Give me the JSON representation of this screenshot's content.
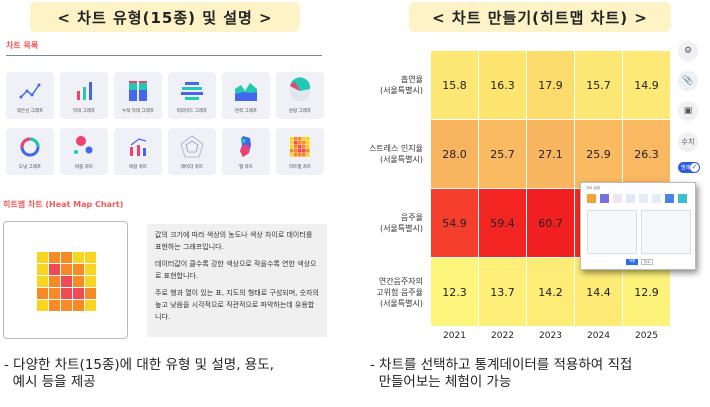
{
  "left_title": "< 차트 유형(15종) 및 설명 >",
  "right_title": "< 차트 만들기(히트맵 차트) >",
  "chart_list": {
    "heading": "차트 목록",
    "items": [
      {
        "label": "꺾은선 그래프",
        "icon": "line-chart"
      },
      {
        "label": "막대 그래프",
        "icon": "bar-chart"
      },
      {
        "label": "누적 막대 그래프",
        "icon": "stacked-bar-chart"
      },
      {
        "label": "피라미드 그래프",
        "icon": "pyramid-chart"
      },
      {
        "label": "면적 그래프",
        "icon": "area-chart"
      },
      {
        "label": "원형 그래프",
        "icon": "pie-chart"
      },
      {
        "label": "도넛 그래프",
        "icon": "donut-chart"
      },
      {
        "label": "버블 차트",
        "icon": "bubble-chart"
      },
      {
        "label": "복합 차트",
        "icon": "combo-chart"
      },
      {
        "label": "레이더 차트",
        "icon": "radar-chart"
      },
      {
        "label": "맵 차트",
        "icon": "map-chart"
      },
      {
        "label": "히트맵 차트",
        "icon": "heatmap-chart"
      }
    ]
  },
  "detail": {
    "heading": "히트맵 차트 (Heat Map Chart)",
    "paragraphs": [
      "값의 크기에 따라 색상의 농도나 색상 차이로 데이터를 표현하는 그래프입니다.",
      "데이터값이 클수록 강한 색상으로 작을수록 연한 색상으로 표현합니다.",
      "주로 행과 열이 있는 표, 지도의 형태로 구성되며, 숫자의 높고 낮음을 시각적으로 직관적으로 파악하는데 유용합니다."
    ]
  },
  "left_caption": [
    "- 다양한 차트(15종)에 대한 유형 및 설명, 용도,",
    "  예시 등을 제공"
  ],
  "right_caption": [
    "- 차트를 선택하고 통계데이터를 적용하여 직접",
    "  만들어보는 체험이 가능"
  ],
  "heatmap": {
    "years": [
      "2021",
      "2022",
      "2023",
      "2024",
      "2025"
    ],
    "rows": [
      {
        "label": [
          "흡연율",
          "(서울특별시)"
        ],
        "values": [
          "15.8",
          "16.3",
          "17.9",
          "15.7",
          "14.9"
        ],
        "colors": [
          "#fde774",
          "#fde570",
          "#fcdc6c",
          "#fde774",
          "#fde976"
        ]
      },
      {
        "label": [
          "스트레스 인지율",
          "(서울특별시)"
        ],
        "values": [
          "28.0",
          "25.7",
          "27.1",
          "25.9",
          "26.3"
        ],
        "colors": [
          "#f8b45e",
          "#f9ba62",
          "#f8b660",
          "#f9ba62",
          "#f9b861"
        ]
      },
      {
        "label": [
          "음주율",
          "(서울특별시)"
        ],
        "values": [
          "54.9",
          "59.4",
          "60.7",
          "",
          ""
        ],
        "colors": [
          "#f53e2b",
          "#f32522",
          "#f21f20",
          "#f32a22",
          "#f32a22"
        ]
      },
      {
        "label": [
          "연간음주자의",
          "고위험 음주율",
          "(서울특별시)"
        ],
        "values": [
          "12.3",
          "13.7",
          "14.2",
          "14.4",
          "12.9"
        ],
        "colors": [
          "#fdf57c",
          "#fdef78",
          "#fdec76",
          "#fdeb76",
          "#fdf37b"
        ]
      }
    ]
  },
  "toolbar": {
    "icons": [
      "gear-icon",
      "paperclip-icon",
      "save-icon"
    ],
    "value_label": "수치",
    "legend_toggle": "범례",
    "legend_on": true
  },
  "dialog": {
    "title": "차트 설정",
    "ok": "적용",
    "cancel": "취소"
  }
}
